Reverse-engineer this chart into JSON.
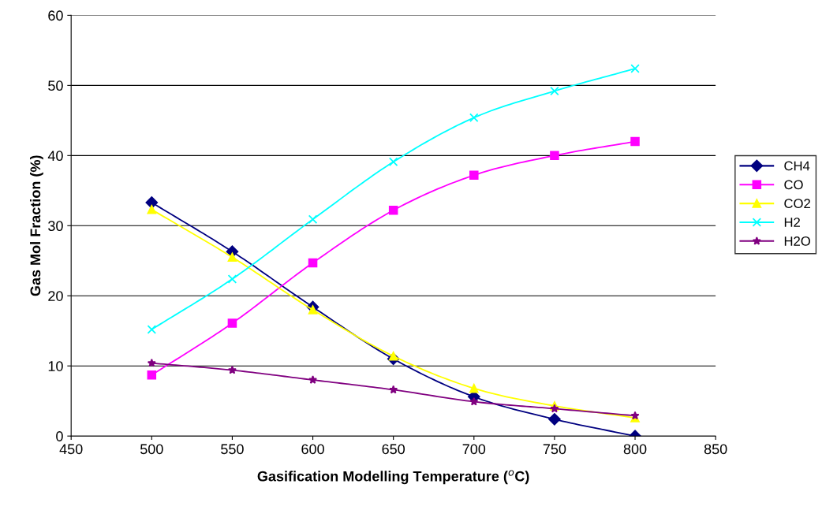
{
  "chart_data": {
    "type": "line",
    "xlabel": "Gasification Modelling Temperature ($^{o}$C)",
    "ylabel": "Gas Mol Fraction (%)",
    "x": [
      500,
      550,
      600,
      650,
      700,
      750,
      800
    ],
    "series": [
      {
        "name": "CH4",
        "color": "#000080",
        "marker": "diamond",
        "values": [
          33.3,
          26.3,
          18.4,
          11.0,
          5.6,
          2.4,
          0.0
        ]
      },
      {
        "name": "CO",
        "color": "#ff00ff",
        "marker": "square",
        "values": [
          8.7,
          16.1,
          24.7,
          32.2,
          37.2,
          40.0,
          42.0
        ]
      },
      {
        "name": "CO2",
        "color": "#ffff00",
        "marker": "triangle",
        "values": [
          32.3,
          25.5,
          18.0,
          11.4,
          6.8,
          4.3,
          2.6
        ]
      },
      {
        "name": "H2",
        "color": "#00ffff",
        "marker": "cross",
        "values": [
          15.2,
          22.4,
          30.9,
          39.1,
          45.4,
          49.2,
          52.4
        ]
      },
      {
        "name": "H2O",
        "color": "#800080",
        "marker": "star",
        "values": [
          10.4,
          9.4,
          8.0,
          6.6,
          4.9,
          3.9,
          2.9
        ]
      }
    ],
    "xlim": [
      450,
      850
    ],
    "xticks": [
      450,
      500,
      550,
      600,
      650,
      700,
      750,
      800,
      850
    ],
    "ylim": [
      0,
      60
    ],
    "yticks": [
      0,
      10,
      20,
      30,
      40,
      50,
      60
    ],
    "grid": "y",
    "legend": "right",
    "line_style": "solid"
  }
}
